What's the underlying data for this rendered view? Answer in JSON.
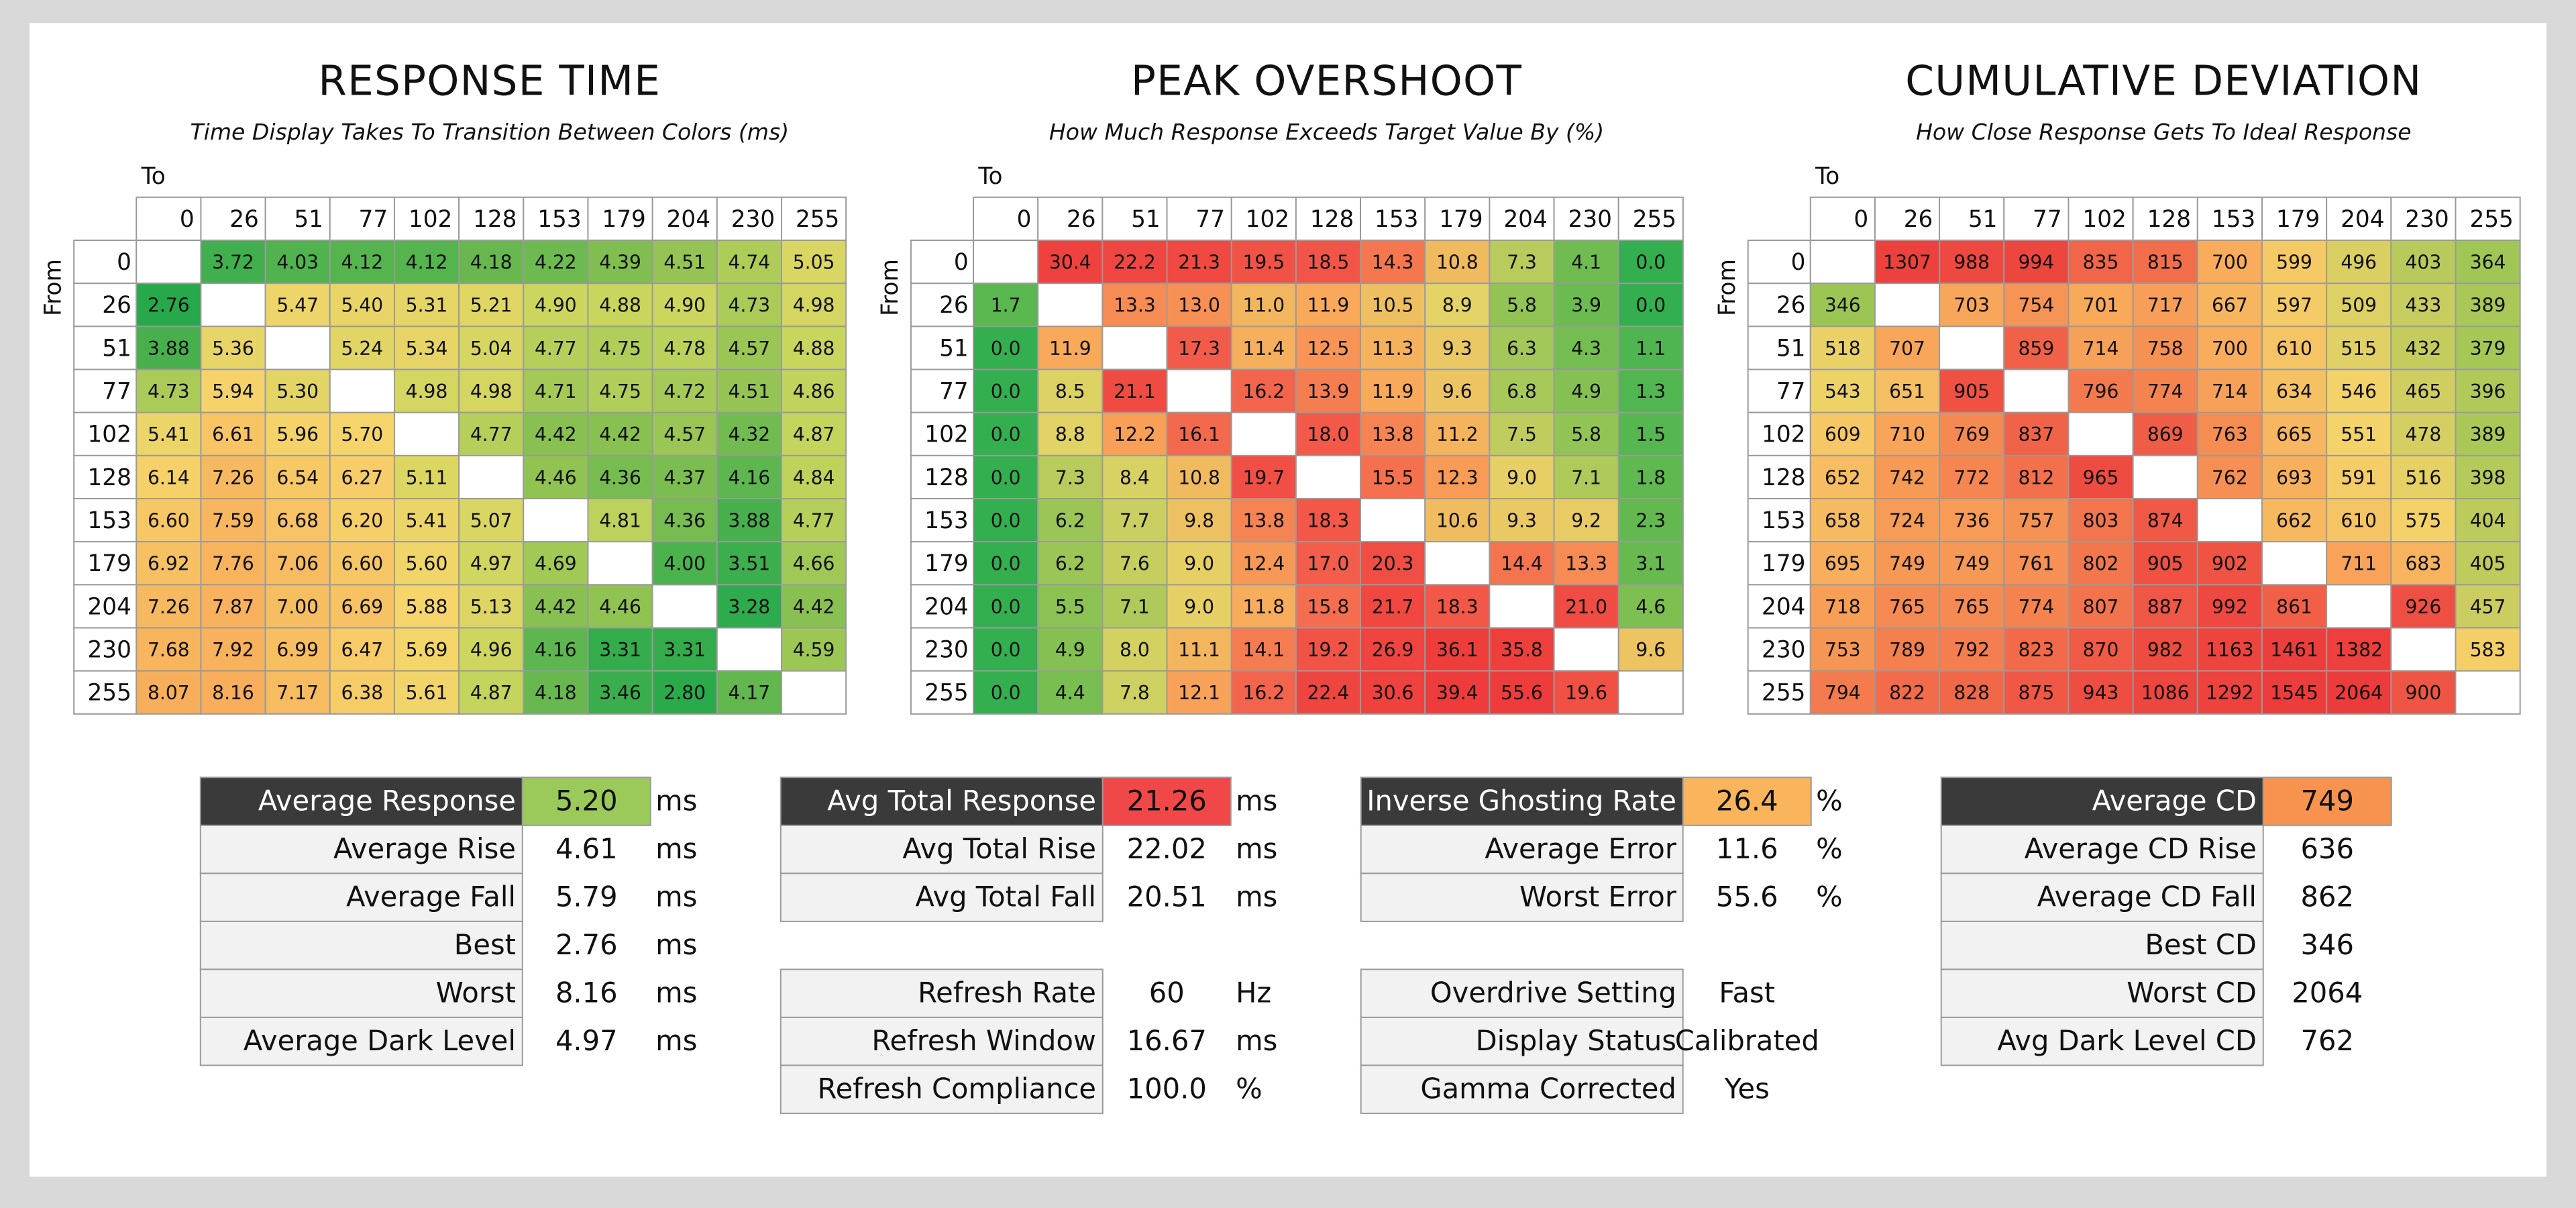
{
  "panels": [
    {
      "title": "RESPONSE TIME",
      "subtitle": "Time Display Takes To Transition Between Colors (ms)",
      "to_label": "To",
      "from_label": "From",
      "levels": [
        "0",
        "26",
        "51",
        "77",
        "102",
        "128",
        "153",
        "179",
        "204",
        "230",
        "255"
      ],
      "colors": [
        "#27a94b",
        "#8cc152",
        "#c9d65e",
        "#f6d56b",
        "#f8ae5b"
      ],
      "cells": [
        [
          null,
          "3.72",
          "4.03",
          "4.12",
          "4.12",
          "4.18",
          "4.22",
          "4.39",
          "4.51",
          "4.74",
          "5.05"
        ],
        [
          "2.76",
          null,
          "5.47",
          "5.40",
          "5.31",
          "5.21",
          "4.90",
          "4.88",
          "4.90",
          "4.73",
          "4.98"
        ],
        [
          "3.88",
          "5.36",
          null,
          "5.24",
          "5.34",
          "5.04",
          "4.77",
          "4.75",
          "4.78",
          "4.57",
          "4.88"
        ],
        [
          "4.73",
          "5.94",
          "5.30",
          null,
          "4.98",
          "4.98",
          "4.71",
          "4.75",
          "4.72",
          "4.51",
          "4.86"
        ],
        [
          "5.41",
          "6.61",
          "5.96",
          "5.70",
          null,
          "4.77",
          "4.42",
          "4.42",
          "4.57",
          "4.32",
          "4.87"
        ],
        [
          "6.14",
          "7.26",
          "6.54",
          "6.27",
          "5.11",
          null,
          "4.46",
          "4.36",
          "4.37",
          "4.16",
          "4.84"
        ],
        [
          "6.60",
          "7.59",
          "6.68",
          "6.20",
          "5.41",
          "5.07",
          null,
          "4.81",
          "4.36",
          "3.88",
          "4.77"
        ],
        [
          "6.92",
          "7.76",
          "7.06",
          "6.60",
          "5.60",
          "4.97",
          "4.69",
          null,
          "4.00",
          "3.51",
          "4.66"
        ],
        [
          "7.26",
          "7.87",
          "7.00",
          "6.69",
          "5.88",
          "5.13",
          "4.42",
          "4.46",
          null,
          "3.28",
          "4.42"
        ],
        [
          "7.68",
          "7.92",
          "6.99",
          "6.47",
          "5.69",
          "4.96",
          "4.16",
          "3.31",
          "3.31",
          null,
          "4.59"
        ],
        [
          "8.07",
          "8.16",
          "7.17",
          "6.38",
          "5.61",
          "4.87",
          "4.18",
          "3.46",
          "2.80",
          "4.17",
          null
        ]
      ]
    },
    {
      "title": "PEAK OVERSHOOT",
      "subtitle": "How Much Response Exceeds Target Value By (%)",
      "to_label": "To",
      "from_label": "From",
      "levels": [
        "0",
        "26",
        "51",
        "77",
        "102",
        "128",
        "153",
        "179",
        "204",
        "230",
        "255"
      ],
      "colors": [
        "#1faa4f",
        "#7cbf50",
        "#e4d466",
        "#f9a85a",
        "#f25a4a",
        "#ee3b3b"
      ],
      "cells": [
        [
          null,
          "30.4",
          "22.2",
          "21.3",
          "19.5",
          "18.5",
          "14.3",
          "10.8",
          "7.3",
          "4.1",
          "0.0"
        ],
        [
          "1.7",
          null,
          "13.3",
          "13.0",
          "11.0",
          "11.9",
          "10.5",
          "8.9",
          "5.8",
          "3.9",
          "0.0"
        ],
        [
          "0.0",
          "11.9",
          null,
          "17.3",
          "11.4",
          "12.5",
          "11.3",
          "9.3",
          "6.3",
          "4.3",
          "1.1"
        ],
        [
          "0.0",
          "8.5",
          "21.1",
          null,
          "16.2",
          "13.9",
          "11.9",
          "9.6",
          "6.8",
          "4.9",
          "1.3"
        ],
        [
          "0.0",
          "8.8",
          "12.2",
          "16.1",
          null,
          "18.0",
          "13.8",
          "11.2",
          "7.5",
          "5.8",
          "1.5"
        ],
        [
          "0.0",
          "7.3",
          "8.4",
          "10.8",
          "19.7",
          null,
          "15.5",
          "12.3",
          "9.0",
          "7.1",
          "1.8"
        ],
        [
          "0.0",
          "6.2",
          "7.7",
          "9.8",
          "13.8",
          "18.3",
          null,
          "10.6",
          "9.3",
          "9.2",
          "2.3"
        ],
        [
          "0.0",
          "6.2",
          "7.6",
          "9.0",
          "12.4",
          "17.0",
          "20.3",
          null,
          "14.4",
          "13.3",
          "3.1"
        ],
        [
          "0.0",
          "5.5",
          "7.1",
          "9.0",
          "11.8",
          "15.8",
          "21.7",
          "18.3",
          null,
          "21.0",
          "4.6"
        ],
        [
          "0.0",
          "4.9",
          "8.0",
          "11.1",
          "14.1",
          "19.2",
          "26.9",
          "36.1",
          "35.8",
          null,
          "9.6"
        ],
        [
          "0.0",
          "4.4",
          "7.8",
          "12.1",
          "16.2",
          "22.4",
          "30.6",
          "39.4",
          "55.6",
          "19.6",
          null
        ]
      ]
    },
    {
      "title": "CUMULATIVE DEVIATION",
      "subtitle": "How Close Response Gets To Ideal Response",
      "to_label": "To",
      "from_label": "From",
      "levels": [
        "0",
        "26",
        "51",
        "77",
        "102",
        "128",
        "153",
        "179",
        "204",
        "230",
        "255"
      ],
      "colors": [
        "#9cc654",
        "#f4d36a",
        "#f8a85a",
        "#f58a52",
        "#f05a46",
        "#ec3b3b"
      ],
      "cells": [
        [
          null,
          "1307",
          "988",
          "994",
          "835",
          "815",
          "700",
          "599",
          "496",
          "403",
          "364"
        ],
        [
          "346",
          null,
          "703",
          "754",
          "701",
          "717",
          "667",
          "597",
          "509",
          "433",
          "389"
        ],
        [
          "518",
          "707",
          null,
          "859",
          "714",
          "758",
          "700",
          "610",
          "515",
          "432",
          "379"
        ],
        [
          "543",
          "651",
          "905",
          null,
          "796",
          "774",
          "714",
          "634",
          "546",
          "465",
          "396"
        ],
        [
          "609",
          "710",
          "769",
          "837",
          null,
          "869",
          "763",
          "665",
          "551",
          "478",
          "389"
        ],
        [
          "652",
          "742",
          "772",
          "812",
          "965",
          null,
          "762",
          "693",
          "591",
          "516",
          "398"
        ],
        [
          "658",
          "724",
          "736",
          "757",
          "803",
          "874",
          null,
          "662",
          "610",
          "575",
          "404"
        ],
        [
          "695",
          "749",
          "749",
          "761",
          "802",
          "905",
          "902",
          null,
          "711",
          "683",
          "405"
        ],
        [
          "718",
          "765",
          "765",
          "774",
          "807",
          "887",
          "992",
          "861",
          null,
          "926",
          "457"
        ],
        [
          "753",
          "789",
          "792",
          "823",
          "870",
          "982",
          "1163",
          "1461",
          "1382",
          null,
          "583"
        ],
        [
          "794",
          "822",
          "828",
          "875",
          "943",
          "1086",
          "1292",
          "1545",
          "2064",
          "900",
          null
        ]
      ]
    }
  ],
  "stats": [
    {
      "blocks": [
        [
          {
            "label": "Average Response",
            "value": "5.20",
            "unit": "ms",
            "highlight": "#9bc95a"
          },
          {
            "label": "Average Rise",
            "value": "4.61",
            "unit": "ms"
          },
          {
            "label": "Average Fall",
            "value": "5.79",
            "unit": "ms"
          },
          {
            "label": "Best",
            "value": "2.76",
            "unit": "ms"
          },
          {
            "label": "Worst",
            "value": "8.16",
            "unit": "ms"
          },
          {
            "label": "Average Dark Level",
            "value": "4.97",
            "unit": "ms"
          }
        ]
      ]
    },
    {
      "blocks": [
        [
          {
            "label": "Avg Total Response",
            "value": "21.26",
            "unit": "ms",
            "highlight": "#f04848"
          },
          {
            "label": "Avg Total Rise",
            "value": "22.02",
            "unit": "ms"
          },
          {
            "label": "Avg Total Fall",
            "value": "20.51",
            "unit": "ms"
          }
        ],
        [
          {
            "label": "Refresh Rate",
            "value": "60",
            "unit": "Hz"
          },
          {
            "label": "Refresh Window",
            "value": "16.67",
            "unit": "ms"
          },
          {
            "label": "Refresh Compliance",
            "value": "100.0",
            "unit": "%"
          }
        ]
      ]
    },
    {
      "blocks": [
        [
          {
            "label": "Inverse Ghosting Rate",
            "value": "26.4",
            "unit": "%",
            "highlight": "#f9b45c"
          },
          {
            "label": "Average Error",
            "value": "11.6",
            "unit": "%"
          },
          {
            "label": "Worst Error",
            "value": "55.6",
            "unit": "%"
          }
        ],
        [
          {
            "label": "Overdrive Setting",
            "value": "Fast"
          },
          {
            "label": "Display Status",
            "value": "Calibrated"
          },
          {
            "label": "Gamma Corrected",
            "value": "Yes"
          }
        ]
      ]
    },
    {
      "blocks": [
        [
          {
            "label": "Average CD",
            "value": "749",
            "highlight": "#f7934e"
          },
          {
            "label": "Average CD Rise",
            "value": "636"
          },
          {
            "label": "Average CD Fall",
            "value": "862"
          },
          {
            "label": "Best CD",
            "value": "346"
          },
          {
            "label": "Worst CD",
            "value": "2064"
          },
          {
            "label": "Avg Dark Level CD",
            "value": "762"
          }
        ]
      ]
    }
  ]
}
